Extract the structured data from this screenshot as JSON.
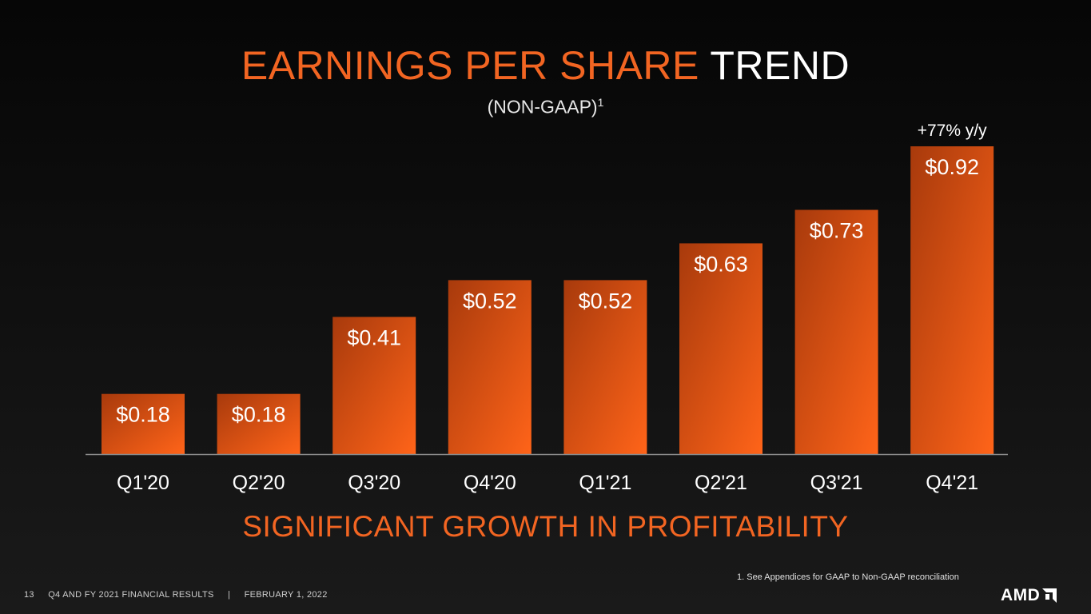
{
  "header": {
    "title_accent": "EARNINGS PER SHARE",
    "title_plain": "TREND",
    "subtitle": "(NON-GAAP)",
    "subtitle_sup": "1"
  },
  "chart_data": {
    "type": "bar",
    "title": "EARNINGS PER SHARE TREND",
    "subtitle": "(NON-GAAP)1",
    "categories": [
      "Q1'20",
      "Q2'20",
      "Q3'20",
      "Q4'20",
      "Q1'21",
      "Q2'21",
      "Q3'21",
      "Q4'21"
    ],
    "values": [
      0.18,
      0.18,
      0.41,
      0.52,
      0.52,
      0.63,
      0.73,
      0.92
    ],
    "data_labels": [
      "$0.18",
      "$0.18",
      "$0.41",
      "$0.52",
      "$0.52",
      "$0.63",
      "$0.73",
      "$0.92"
    ],
    "annotation": "+77% y/y",
    "xlabel": "",
    "ylabel": "",
    "ylim": [
      0,
      0.92
    ],
    "grid": false,
    "bar_color_start": "#a83a0c",
    "bar_color_end": "#ff6419"
  },
  "tagline": "SIGNIFICANT GROWTH IN PROFITABILITY",
  "footnote": "1. See Appendices for GAAP to Non-GAAP reconciliation",
  "footer": {
    "page_number": "13",
    "report": "Q4 AND FY 2021 FINANCIAL RESULTS",
    "separator": "|",
    "date": "FEBRUARY 1, 2022"
  },
  "logo": {
    "text": "AMD",
    "icon": "amd-arrow-icon"
  },
  "colors": {
    "accent": "#f26522",
    "background": "#0a0a0a"
  }
}
